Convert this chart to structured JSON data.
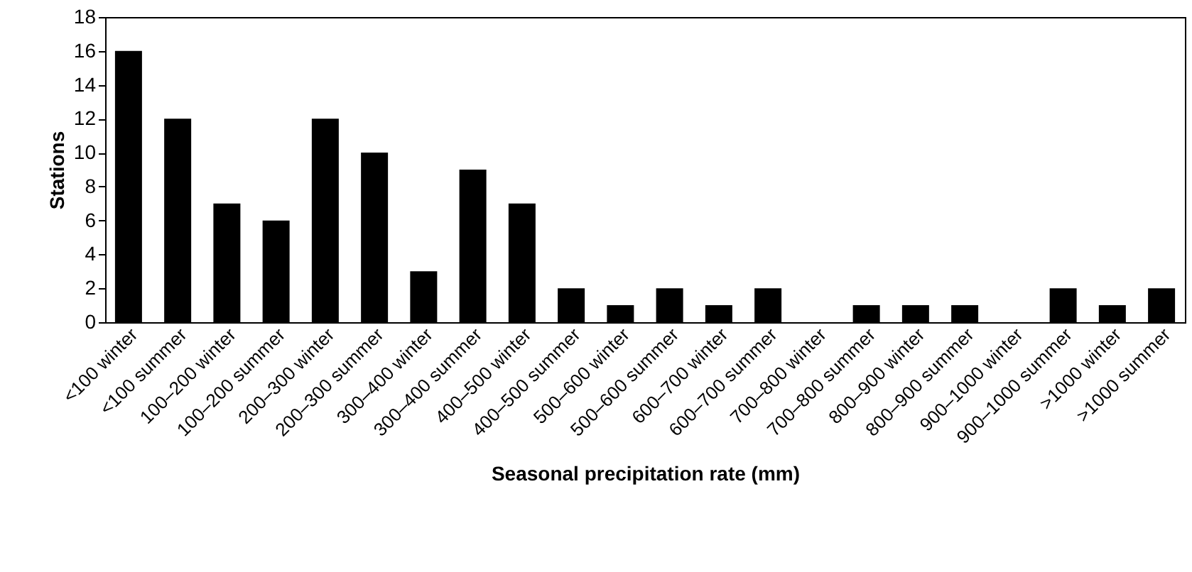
{
  "chart_data": {
    "type": "bar",
    "xlabel": "Seasonal precipitation rate (mm)",
    "ylabel": "Stations",
    "categories": [
      "<100 winter",
      "<100 summer",
      "100–200 winter",
      "100–200 summer",
      "200–300 winter",
      "200–300 summer",
      "300–400 winter",
      "300–400 summer",
      "400–500 winter",
      "400–500 summer",
      "500–600 winter",
      "500–600 summer",
      "600–700 winter",
      "600–700 summer",
      "700–800 winter",
      "700–800 summer",
      "800–900 winter",
      "800–900 summer",
      "900–1000 winter",
      "900–1000 summer",
      ">1000 winter",
      ">1000 summer"
    ],
    "values": [
      16,
      12,
      7,
      6,
      12,
      10,
      3,
      9,
      7,
      2,
      1,
      2,
      1,
      2,
      0,
      1,
      1,
      1,
      0,
      2,
      1,
      2
    ],
    "color": "#000000",
    "ylim": [
      0,
      18
    ],
    "yticks": [
      0,
      2,
      4,
      6,
      8,
      10,
      12,
      14,
      16,
      18
    ],
    "grid": false
  }
}
